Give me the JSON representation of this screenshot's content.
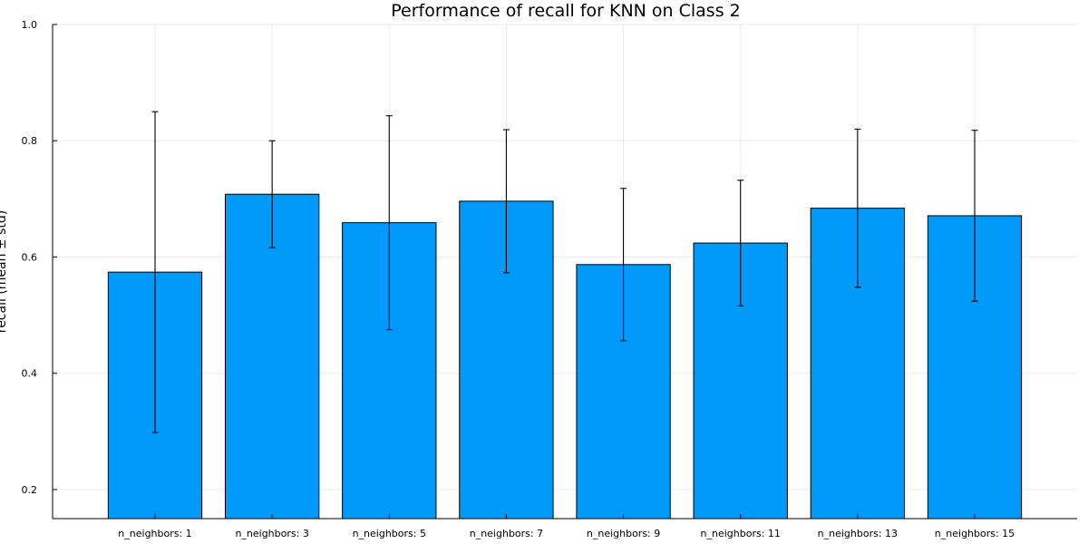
{
  "chart_data": {
    "type": "bar",
    "title": "Performance of recall for KNN on Class 2",
    "xlabel": "",
    "ylabel": "recall (mean ± std)",
    "categories": [
      "n_neighbors: 1",
      "n_neighbors: 3",
      "n_neighbors: 5",
      "n_neighbors: 7",
      "n_neighbors: 9",
      "n_neighbors: 11",
      "n_neighbors: 13",
      "n_neighbors: 15"
    ],
    "values": [
      0.574,
      0.708,
      0.659,
      0.696,
      0.587,
      0.624,
      0.684,
      0.671
    ],
    "error": [
      0.276,
      0.092,
      0.184,
      0.123,
      0.131,
      0.108,
      0.136,
      0.147
    ],
    "ylim": [
      0.15,
      1.0
    ],
    "yticks": [
      0.2,
      0.4,
      0.6,
      0.8,
      1.0
    ],
    "ytick_labels": [
      "0.2",
      "0.4",
      "0.6",
      "0.8",
      "1.0"
    ],
    "grid": true,
    "legend": "none",
    "bar_color": "#009AFA",
    "bar_edge_color": "#000000",
    "errorbar_color": "#000000"
  }
}
